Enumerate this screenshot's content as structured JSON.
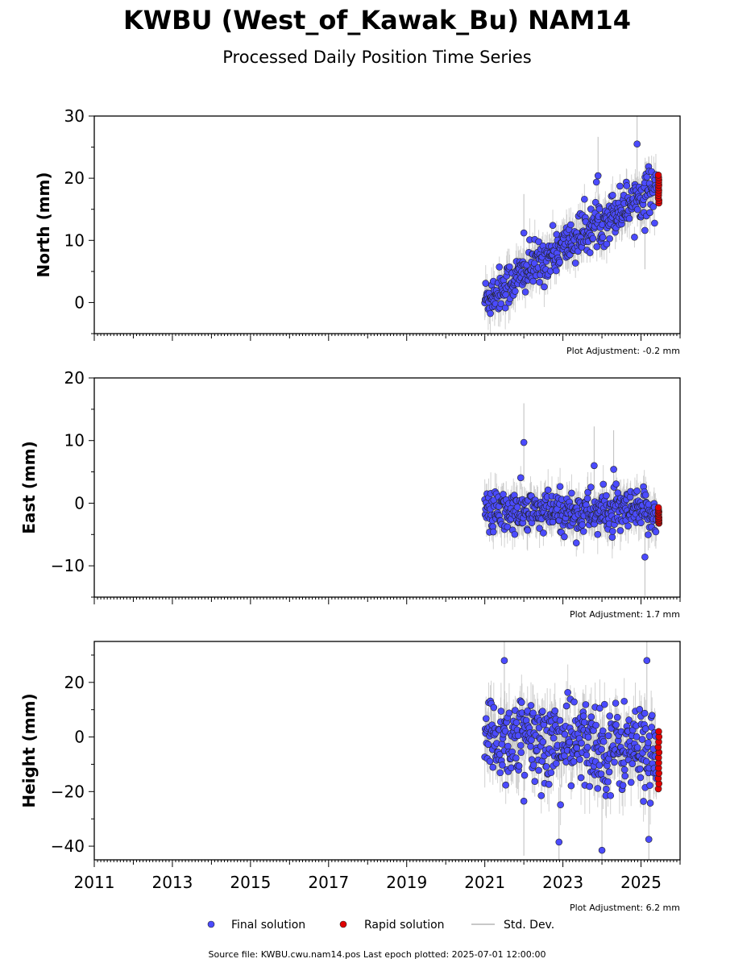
{
  "title": "KWBU (West_of_Kawak_Bu) NAM14",
  "subtitle": "Processed Daily Position Time Series",
  "footer": "Source file: KWBU.cwu.nam14.pos  Last epoch plotted: 2025-07-01 12:00:00",
  "legend": {
    "final": "Final solution",
    "rapid": "Rapid solution",
    "std": "Std. Dev."
  },
  "colors": {
    "final": "#4b4bff",
    "rapid": "#e00000",
    "std": "#c8c8c8"
  },
  "chart_data": [
    {
      "type": "scatter",
      "ylabel": "North (mm)",
      "adjustment": "Plot Adjustment: -0.2 mm",
      "xlim": [
        2011,
        2026
      ],
      "ylim": [
        -5,
        30
      ],
      "yticks": [
        0,
        10,
        20,
        30
      ],
      "x_start": 2021.0,
      "x_end_final": 2025.4,
      "x_end_rapid": 2025.5,
      "trend_start": 0.5,
      "trend_end": 19.0,
      "scatter": 1.8,
      "err": 2.5,
      "outliers": [
        [
          2022.0,
          11.2
        ],
        [
          2023.9,
          20.4
        ],
        [
          2025.1,
          11.6
        ],
        [
          2024.9,
          25.5
        ]
      ],
      "rapid_range": [
        16,
        20.5
      ]
    },
    {
      "type": "scatter",
      "ylabel": "East (mm)",
      "adjustment": "Plot Adjustment: 1.7 mm",
      "xlim": [
        2011,
        2026
      ],
      "ylim": [
        -15,
        20
      ],
      "yticks": [
        -10,
        0,
        10,
        20
      ],
      "x_start": 2021.0,
      "x_end_final": 2025.4,
      "x_end_rapid": 2025.5,
      "trend_start": -1.5,
      "trend_end": -1.5,
      "scatter": 1.7,
      "err": 2.5,
      "outliers": [
        [
          2022.0,
          9.7
        ],
        [
          2025.1,
          -8.6
        ],
        [
          2023.8,
          6.0
        ],
        [
          2024.3,
          5.4
        ]
      ],
      "rapid_range": [
        -3.2,
        -0.7
      ]
    },
    {
      "type": "scatter",
      "ylabel": "Height (mm)",
      "adjustment": "Plot Adjustment: 6.2 mm",
      "xlim": [
        2011,
        2026
      ],
      "ylim": [
        -45,
        35
      ],
      "yticks": [
        -40,
        -20,
        0,
        20
      ],
      "x_start": 2021.0,
      "x_end_final": 2025.4,
      "x_end_rapid": 2025.5,
      "trend_start": 0,
      "trend_end": -5,
      "scatter": 8.0,
      "err": 8.0,
      "outliers": [
        [
          2022.9,
          -38.5
        ],
        [
          2024.0,
          -41.5
        ],
        [
          2025.2,
          -37.5
        ],
        [
          2022.0,
          -23.5
        ],
        [
          2025.15,
          28.0
        ],
        [
          2021.5,
          28.0
        ]
      ],
      "rapid_range": [
        -19,
        2
      ]
    }
  ],
  "xticks": [
    "2011",
    "2013",
    "2015",
    "2017",
    "2019",
    "2021",
    "2023",
    "2025"
  ]
}
